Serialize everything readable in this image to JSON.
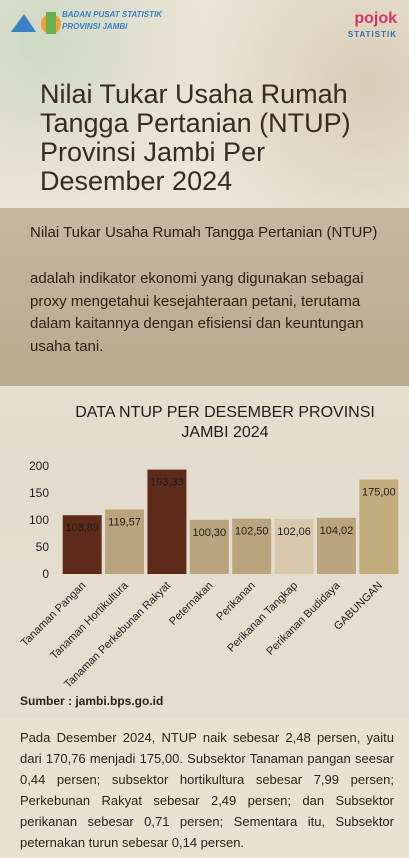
{
  "header": {
    "org": "BADAN PUSAT STATISTIK",
    "region": "PROVINSI JAMBI",
    "brand": "pojok",
    "brand_sub": "STATISTIK"
  },
  "title": "Nilai Tukar Usaha Rumah Tangga Pertanian (NTUP) Provinsi Jambi Per Desember 2024",
  "intro": {
    "term": "Nilai Tukar Usaha Rumah Tangga Pertanian (NTUP)",
    "text": "adalah indikator ekonomi yang digunakan  sebagai proxy mengetahui kesejahteraan petani, terutama dalam kaitannya dengan efisiensi dan keuntungan usaha tani."
  },
  "chart_data": {
    "type": "bar",
    "title": "DATA NTUP PER DESEMBER PROVINSI JAMBI 2024",
    "categories": [
      "Tanaman Pangan",
      "Tanaman Hortikultura",
      "Tanaman Perkebunan Rakyat",
      "Peternakan",
      "Perikanan",
      "Perikanan Tangkap",
      "Perikanan Budidaya",
      "GABUNGAN"
    ],
    "values": [
      108.89,
      119.57,
      193.33,
      100.3,
      102.5,
      102.06,
      104.02,
      175.0
    ],
    "value_labels": [
      "108,89",
      "119,57",
      "193,33",
      "100,30",
      "102,50",
      "102,06",
      "104,02",
      "175,00"
    ],
    "colors": [
      "#5e2b1b",
      "#b9a47e",
      "#5e2b1b",
      "#b9a47e",
      "#b9a47e",
      "#d8c9ad",
      "#b9a47e",
      "#c2ae7c"
    ],
    "ylim": [
      0,
      200
    ],
    "yticks": [
      0,
      50,
      100,
      150,
      200
    ],
    "grid": false
  },
  "source": "Sumber : jambi.bps.go.id",
  "summary": "Pada Desember 2024, NTUP naik sebesar 2,48 persen, yaitu dari 170,76 menjadi 175,00. Subsektor Tanaman pangan seesar 0,44 persen; subsektor hortikultura sebesar 7,99 persen; Perkebunan Rakyat sebesar 2,49 persen; dan Subsektor perikanan sebesar 0,71 persen; Sementara itu, Subsektor peternakan turun sebesar 0,14 persen."
}
